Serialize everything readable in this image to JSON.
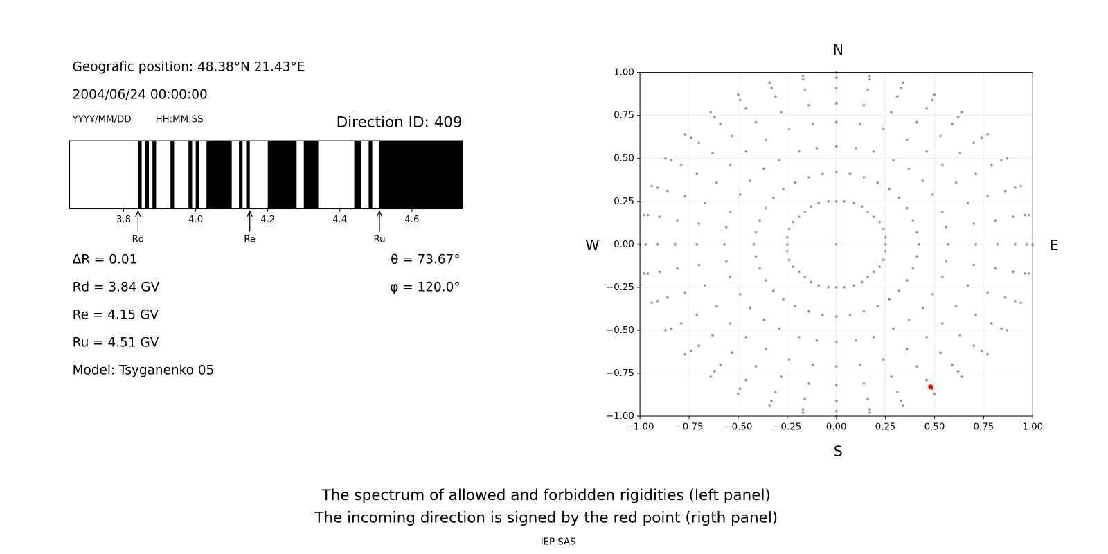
{
  "header": {
    "position": "Geografic position: 48.38°N 21.43°E",
    "datetime": "2004/06/24 00:00:00",
    "date_format": "YYYY/MM/DD",
    "time_format": "HH:MM:SS",
    "direction_id": "Direction ID: 409"
  },
  "parameters": {
    "left": [
      "ΔR = 0.01",
      "Rd = 3.84 GV",
      "Re = 4.15 GV",
      "Ru = 4.51 GV",
      "Model: Tsyganenko 05"
    ],
    "right": [
      "θ = 73.67°",
      "φ = 120.0°"
    ]
  },
  "chart_data": [
    {
      "type": "spectrum",
      "xlim": [
        3.65,
        4.74
      ],
      "xticks": [
        3.8,
        {
          "value": 4.0,
          "label": "4.0"
        },
        4.2,
        4.4,
        4.6
      ],
      "band_color": "#000000",
      "forbidden_bands": [
        [
          3.84,
          3.85
        ],
        [
          3.86,
          3.87
        ],
        [
          3.88,
          3.89
        ],
        [
          3.93,
          3.94
        ],
        [
          3.98,
          3.99
        ],
        [
          4.0,
          4.01
        ],
        [
          4.03,
          4.1
        ],
        [
          4.12,
          4.13
        ],
        [
          4.14,
          4.15
        ],
        [
          4.2,
          4.28
        ],
        [
          4.3,
          4.34
        ],
        [
          4.44,
          4.46
        ],
        [
          4.48,
          4.49
        ],
        [
          4.51,
          4.74
        ]
      ],
      "markers": [
        {
          "label": "Rd",
          "value": 3.84
        },
        {
          "label": "Re",
          "value": 4.15
        },
        {
          "label": "Ru",
          "value": 4.51
        }
      ]
    },
    {
      "type": "scatter",
      "xlim": [
        -1,
        1
      ],
      "ylim": [
        -1,
        1
      ],
      "xticks": [
        {
          "value": -1,
          "label": "−1.00"
        },
        {
          "value": -0.75,
          "label": "−0.75"
        },
        {
          "value": -0.5,
          "label": "−0.50"
        },
        {
          "value": -0.25,
          "label": "−0.25"
        },
        {
          "value": 0,
          "label": "0.00"
        },
        {
          "value": 0.25,
          "label": "0.25"
        },
        {
          "value": 0.5,
          "label": "0.50"
        },
        {
          "value": 0.75,
          "label": "0.75"
        },
        {
          "value": 1,
          "label": "1.00"
        }
      ],
      "yticks": [
        {
          "value": -1,
          "label": "−1.00"
        },
        {
          "value": -0.75,
          "label": "−0.75"
        },
        {
          "value": -0.5,
          "label": "−0.50"
        },
        {
          "value": -0.25,
          "label": "−0.25"
        },
        {
          "value": 0,
          "label": "0.00"
        },
        {
          "value": 0.25,
          "label": "0.25"
        },
        {
          "value": 0.5,
          "label": "0.50"
        },
        {
          "value": 0.75,
          "label": "0.75"
        },
        {
          "value": 1,
          "label": "1.00"
        }
      ],
      "grid": true,
      "directions": {
        "north": "N",
        "south": "S",
        "west": "W",
        "east": "E"
      },
      "series": [
        {
          "color": "#999999",
          "x": [
            0,
            0.25,
            0.42,
            0.57,
            0.71,
            0.82,
            0.91,
            0.97,
            1,
            0.25,
            0.41,
            0.56,
            0.7,
            0.81,
            0.9,
            0.96,
            0.98,
            0.24,
            0.39,
            0.54,
            0.67,
            0.77,
            0.86,
            0.91,
            0.94,
            0.22,
            0.36,
            0.49,
            0.61,
            0.71,
            0.79,
            0.84,
            0.87,
            0.19,
            0.32,
            0.44,
            0.54,
            0.63,
            0.7,
            0.74,
            0.77,
            0.16,
            0.27,
            0.37,
            0.46,
            0.53,
            0.59,
            0.62,
            0.64,
            0.13,
            0.21,
            0.29,
            0.36,
            0.41,
            0.46,
            0.49,
            0.5,
            0.09,
            0.14,
            0.19,
            0.24,
            0.28,
            0.31,
            0.33,
            0.34,
            0.04,
            0.07,
            0.1,
            0.12,
            0.14,
            0.16,
            0.17,
            0.17,
            0,
            0,
            0,
            0,
            0,
            0,
            0,
            0,
            -0.04,
            -0.07,
            -0.1,
            -0.12,
            -0.14,
            -0.16,
            -0.17,
            -0.17,
            -0.09,
            -0.14,
            -0.19,
            -0.24,
            -0.28,
            -0.31,
            -0.33,
            -0.34,
            -0.13,
            -0.21,
            -0.29,
            -0.36,
            -0.41,
            -0.46,
            -0.49,
            -0.5,
            -0.16,
            -0.27,
            -0.37,
            -0.46,
            -0.53,
            -0.59,
            -0.62,
            -0.64,
            -0.19,
            -0.32,
            -0.44,
            -0.54,
            -0.63,
            -0.7,
            -0.74,
            -0.77,
            -0.22,
            -0.36,
            -0.49,
            -0.61,
            -0.71,
            -0.79,
            -0.84,
            -0.87,
            -0.24,
            -0.39,
            -0.54,
            -0.67,
            -0.77,
            -0.86,
            -0.91,
            -0.94,
            -0.25,
            -0.41,
            -0.56,
            -0.7,
            -0.81,
            -0.9,
            -0.96,
            -0.98,
            -0.25,
            -0.42,
            -0.57,
            -0.71,
            -0.82,
            -0.91,
            -0.97,
            -1,
            -0.25,
            -0.41,
            -0.56,
            -0.7,
            -0.81,
            -0.9,
            -0.96,
            -0.98,
            -0.24,
            -0.39,
            -0.54,
            -0.67,
            -0.77,
            -0.86,
            -0.91,
            -0.94,
            -0.22,
            -0.36,
            -0.49,
            -0.61,
            -0.71,
            -0.79,
            -0.84,
            -0.87,
            -0.19,
            -0.32,
            -0.44,
            -0.54,
            -0.63,
            -0.7,
            -0.74,
            -0.77,
            -0.16,
            -0.27,
            -0.37,
            -0.46,
            -0.53,
            -0.59,
            -0.62,
            -0.64,
            -0.13,
            -0.21,
            -0.29,
            -0.36,
            -0.41,
            -0.46,
            -0.49,
            -0.5,
            -0.09,
            -0.14,
            -0.19,
            -0.24,
            -0.28,
            -0.31,
            -0.33,
            -0.34,
            -0.04,
            -0.07,
            -0.1,
            -0.12,
            -0.14,
            -0.16,
            -0.17,
            -0.17,
            0,
            0,
            0,
            0,
            0,
            0,
            0,
            0,
            0.04,
            0.07,
            0.1,
            0.12,
            0.14,
            0.16,
            0.17,
            0.17,
            0.09,
            0.14,
            0.19,
            0.24,
            0.28,
            0.31,
            0.33,
            0.34,
            0.13,
            0.21,
            0.29,
            0.36,
            0.41,
            0.46,
            0.49,
            0.5,
            0.16,
            0.27,
            0.37,
            0.46,
            0.53,
            0.59,
            0.62,
            0.64,
            0.19,
            0.32,
            0.44,
            0.54,
            0.63,
            0.7,
            0.74,
            0.77,
            0.22,
            0.36,
            0.49,
            0.61,
            0.71,
            0.79,
            0.84,
            0.87,
            0.24,
            0.39,
            0.54,
            0.67,
            0.77,
            0.86,
            0.91,
            0.94,
            0.25,
            0.41,
            0.56,
            0.7,
            0.81,
            0.9,
            0.96,
            0.98
          ],
          "y": [
            0,
            0,
            0,
            0,
            0,
            0,
            0,
            0,
            0,
            0.04,
            0.07,
            0.1,
            0.12,
            0.14,
            0.16,
            0.17,
            0.17,
            0.09,
            0.14,
            0.19,
            0.24,
            0.28,
            0.31,
            0.33,
            0.34,
            0.13,
            0.21,
            0.29,
            0.36,
            0.41,
            0.46,
            0.49,
            0.5,
            0.16,
            0.27,
            0.37,
            0.46,
            0.53,
            0.59,
            0.62,
            0.64,
            0.19,
            0.32,
            0.44,
            0.54,
            0.63,
            0.7,
            0.74,
            0.77,
            0.22,
            0.36,
            0.49,
            0.61,
            0.71,
            0.79,
            0.84,
            0.87,
            0.24,
            0.39,
            0.54,
            0.67,
            0.77,
            0.86,
            0.91,
            0.94,
            0.25,
            0.41,
            0.56,
            0.7,
            0.81,
            0.9,
            0.96,
            0.98,
            0.25,
            0.42,
            0.57,
            0.71,
            0.82,
            0.91,
            0.97,
            1,
            0.25,
            0.41,
            0.56,
            0.7,
            0.81,
            0.9,
            0.96,
            0.98,
            0.24,
            0.39,
            0.54,
            0.67,
            0.77,
            0.86,
            0.91,
            0.94,
            0.22,
            0.36,
            0.49,
            0.61,
            0.71,
            0.79,
            0.84,
            0.87,
            0.19,
            0.32,
            0.44,
            0.54,
            0.63,
            0.7,
            0.74,
            0.77,
            0.16,
            0.27,
            0.37,
            0.46,
            0.53,
            0.59,
            0.62,
            0.64,
            0.13,
            0.21,
            0.29,
            0.36,
            0.41,
            0.46,
            0.49,
            0.5,
            0.09,
            0.14,
            0.19,
            0.24,
            0.28,
            0.31,
            0.33,
            0.34,
            0.04,
            0.07,
            0.1,
            0.12,
            0.14,
            0.16,
            0.17,
            0.17,
            0,
            0,
            0,
            0,
            0,
            0,
            0,
            0,
            -0.04,
            -0.07,
            -0.1,
            -0.12,
            -0.14,
            -0.16,
            -0.17,
            -0.17,
            -0.09,
            -0.14,
            -0.19,
            -0.24,
            -0.28,
            -0.31,
            -0.33,
            -0.34,
            -0.13,
            -0.21,
            -0.29,
            -0.36,
            -0.41,
            -0.46,
            -0.49,
            -0.5,
            -0.16,
            -0.27,
            -0.37,
            -0.46,
            -0.53,
            -0.59,
            -0.62,
            -0.64,
            -0.19,
            -0.32,
            -0.44,
            -0.54,
            -0.63,
            -0.7,
            -0.74,
            -0.77,
            -0.22,
            -0.36,
            -0.49,
            -0.61,
            -0.71,
            -0.79,
            -0.84,
            -0.87,
            -0.24,
            -0.39,
            -0.54,
            -0.67,
            -0.77,
            -0.86,
            -0.91,
            -0.94,
            -0.25,
            -0.41,
            -0.56,
            -0.7,
            -0.81,
            -0.9,
            -0.96,
            -0.98,
            -0.25,
            -0.42,
            -0.57,
            -0.71,
            -0.82,
            -0.91,
            -0.97,
            -1,
            -0.25,
            -0.41,
            -0.56,
            -0.7,
            -0.81,
            -0.9,
            -0.96,
            -0.98,
            -0.24,
            -0.39,
            -0.54,
            -0.67,
            -0.77,
            -0.86,
            -0.91,
            -0.94,
            -0.22,
            -0.36,
            -0.49,
            -0.61,
            -0.71,
            -0.79,
            -0.84,
            -0.87,
            -0.19,
            -0.32,
            -0.44,
            -0.54,
            -0.63,
            -0.7,
            -0.74,
            -0.77,
            -0.16,
            -0.27,
            -0.37,
            -0.46,
            -0.53,
            -0.59,
            -0.62,
            -0.64,
            -0.13,
            -0.21,
            -0.29,
            -0.36,
            -0.41,
            -0.46,
            -0.49,
            -0.5,
            -0.09,
            -0.14,
            -0.19,
            -0.24,
            -0.28,
            -0.31,
            -0.33,
            -0.34,
            -0.04,
            -0.07,
            -0.1,
            -0.12,
            -0.14,
            -0.16,
            -0.17,
            -0.17
          ]
        },
        {
          "color": "#ff0000",
          "x": [
            0.48
          ],
          "y": [
            -0.83
          ]
        }
      ]
    }
  ],
  "footer": {
    "lines": [
      "The spectrum of allowed and forbidden rigidities (left panel)",
      "The incoming direction is signed by the red point (rigth panel)"
    ],
    "credit": "IEP SAS"
  }
}
